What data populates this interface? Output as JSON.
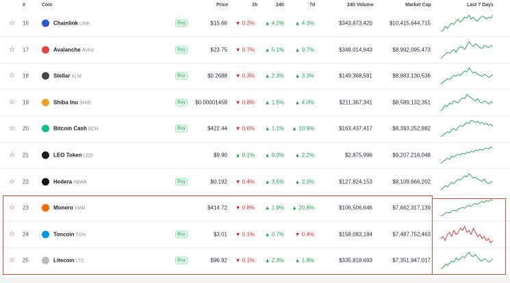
{
  "header": {
    "rank": "#",
    "coin": "Coin",
    "price": "Price",
    "h1": "1h",
    "h24": "24h",
    "d7": "7d",
    "volume": "24h Volume",
    "mcap": "Market Cap",
    "last7": "Last 7 Days"
  },
  "buy_label": "Buy",
  "colors": {
    "up": "#16a34a",
    "down": "#dc2626",
    "highlight": "#dc4a38"
  },
  "rows": [
    {
      "rank": "16",
      "name": "Chainlink",
      "symbol": "LINK",
      "logo_color": "#2a5ada",
      "buy": true,
      "price": "$15.66",
      "h1": "0.2%",
      "h1_dir": "down",
      "h24": "4.2%",
      "h24_dir": "up",
      "d7": "4.3%",
      "d7_dir": "up",
      "volume": "$343,873,420",
      "mcap": "$10,415,644,715",
      "spark_trend": "up",
      "spark": [
        4,
        5,
        9,
        7,
        10,
        12,
        11,
        14,
        16,
        13,
        15,
        18,
        17,
        20,
        16,
        18,
        15,
        14,
        17,
        19,
        18,
        16,
        18,
        17,
        20
      ]
    },
    {
      "rank": "17",
      "name": "Avalanche",
      "symbol": "AVAX",
      "logo_color": "#e84142",
      "buy": true,
      "price": "$23.75",
      "h1": "0.7%",
      "h1_dir": "down",
      "h24": "5.1%",
      "h24_dir": "up",
      "d7": "9.7%",
      "d7_dir": "up",
      "volume": "$348,014,843",
      "mcap": "$8,992,095,473",
      "spark_trend": "up",
      "spark": [
        3,
        5,
        7,
        9,
        8,
        10,
        12,
        9,
        13,
        15,
        14,
        12,
        16,
        20,
        17,
        15,
        18,
        16,
        14,
        13,
        16,
        15,
        14,
        16,
        15
      ]
    },
    {
      "rank": "18",
      "name": "Stellar",
      "symbol": "XLM",
      "logo_color": "#444444",
      "buy": true,
      "price": "$0.2688",
      "h1": "0.3%",
      "h1_dir": "down",
      "h24": "2.3%",
      "h24_dir": "up",
      "d7": "3.3%",
      "d7_dir": "up",
      "volume": "$149,368,591",
      "mcap": "$8,983,130,536",
      "spark_trend": "up",
      "spark": [
        5,
        7,
        8,
        10,
        9,
        11,
        13,
        12,
        14,
        13,
        15,
        17,
        16,
        20,
        17,
        15,
        16,
        14,
        13,
        12,
        14,
        13,
        11,
        12,
        14
      ]
    },
    {
      "rank": "19",
      "name": "Shiba Inu",
      "symbol": "SHIB",
      "logo_color": "#f0a020",
      "buy": true,
      "price": "$0.00001458",
      "h1": "0.8%",
      "h1_dir": "down",
      "h24": "1.5%",
      "h24_dir": "up",
      "d7": "4.0%",
      "d7_dir": "up",
      "volume": "$211,367,341",
      "mcap": "$8,589,132,351",
      "spark_trend": "up",
      "spark": [
        4,
        6,
        9,
        8,
        11,
        10,
        13,
        12,
        11,
        14,
        16,
        15,
        19,
        17,
        16,
        14,
        13,
        15,
        12,
        11,
        13,
        12,
        10,
        12,
        11
      ]
    },
    {
      "rank": "20",
      "name": "Bitcoin Cash",
      "symbol": "BCH",
      "logo_color": "#0ac18e",
      "buy": true,
      "price": "$422.44",
      "h1": "0.6%",
      "h1_dir": "down",
      "h24": "1.1%",
      "h24_dir": "up",
      "d7": "10.9%",
      "d7_dir": "up",
      "volume": "$163,437,417",
      "mcap": "$8,393,252,882",
      "spark_trend": "up",
      "spark": [
        3,
        5,
        6,
        8,
        7,
        10,
        11,
        9,
        12,
        14,
        13,
        15,
        17,
        16,
        19,
        18,
        17,
        18,
        16,
        17,
        15,
        16,
        14,
        15,
        13
      ]
    },
    {
      "rank": "21",
      "name": "LEO Token",
      "symbol": "LEO",
      "logo_color": "#1a1a1a",
      "buy": false,
      "price": "$9.90",
      "h1": "0.1%",
      "h1_dir": "up",
      "h24": "0.3%",
      "h24_dir": "up",
      "d7": "2.2%",
      "d7_dir": "up",
      "volume": "$2,875,996",
      "mcap": "$9,207,216,048",
      "spark_trend": "up",
      "spark": [
        4,
        6,
        7,
        9,
        8,
        11,
        10,
        12,
        13,
        12,
        14,
        13,
        15,
        14,
        16,
        15,
        17,
        16,
        18,
        17,
        18,
        19,
        18,
        20,
        19
      ]
    },
    {
      "rank": "22",
      "name": "Hedera",
      "symbol": "HBAR",
      "logo_color": "#111111",
      "buy": true,
      "price": "$0.192",
      "h1": "0.4%",
      "h1_dir": "down",
      "h24": "3.5%",
      "h24_dir": "up",
      "d7": "2.3%",
      "d7_dir": "up",
      "volume": "$127,824,153",
      "mcap": "$8,109,666,202",
      "spark_trend": "up",
      "spark": [
        5,
        7,
        9,
        8,
        10,
        12,
        11,
        13,
        15,
        14,
        16,
        18,
        17,
        20,
        18,
        16,
        17,
        15,
        14,
        13,
        15,
        12,
        11,
        12,
        13
      ]
    },
    {
      "rank": "23",
      "name": "Monero",
      "symbol": "XMR",
      "logo_color": "#ff6600",
      "buy": false,
      "price": "$414.72",
      "h1": "0.8%",
      "h1_dir": "down",
      "h24": "1.9%",
      "h24_dir": "up",
      "d7": "20.8%",
      "d7_dir": "up",
      "volume": "$106,506,646",
      "mcap": "$7,662,317,139",
      "spark_trend": "up",
      "spark": [
        3,
        4,
        6,
        7,
        6,
        8,
        9,
        8,
        10,
        11,
        12,
        11,
        13,
        14,
        13,
        15,
        16,
        15,
        17,
        18,
        17,
        19,
        18,
        20,
        19
      ]
    },
    {
      "rank": "24",
      "name": "Toncoin",
      "symbol": "TON",
      "logo_color": "#0098ea",
      "buy": true,
      "price": "$3.01",
      "h1": "0.1%",
      "h1_dir": "down",
      "h24": "0.7%",
      "h24_dir": "up",
      "d7": "0.4%",
      "d7_dir": "down",
      "volume": "$158,083,184",
      "mcap": "$7,487,752,463",
      "spark_trend": "down",
      "spark": [
        12,
        13,
        11,
        14,
        15,
        13,
        16,
        14,
        15,
        17,
        16,
        18,
        15,
        16,
        14,
        17,
        15,
        13,
        14,
        12,
        13,
        11,
        12,
        10,
        11
      ]
    },
    {
      "rank": "25",
      "name": "Litecoin",
      "symbol": "LTC",
      "logo_color": "#bfbbbb",
      "buy": true,
      "price": "$96.92",
      "h1": "0.1%",
      "h1_dir": "down",
      "h24": "2.3%",
      "h24_dir": "up",
      "d7": "1.8%",
      "d7_dir": "up",
      "volume": "$335,818,693",
      "mcap": "$7,351,947,017",
      "spark_trend": "up",
      "spark": [
        4,
        5,
        8,
        7,
        9,
        11,
        10,
        14,
        12,
        13,
        15,
        14,
        17,
        19,
        16,
        15,
        17,
        14,
        12,
        11,
        13,
        12,
        10,
        11,
        13
      ]
    }
  ]
}
